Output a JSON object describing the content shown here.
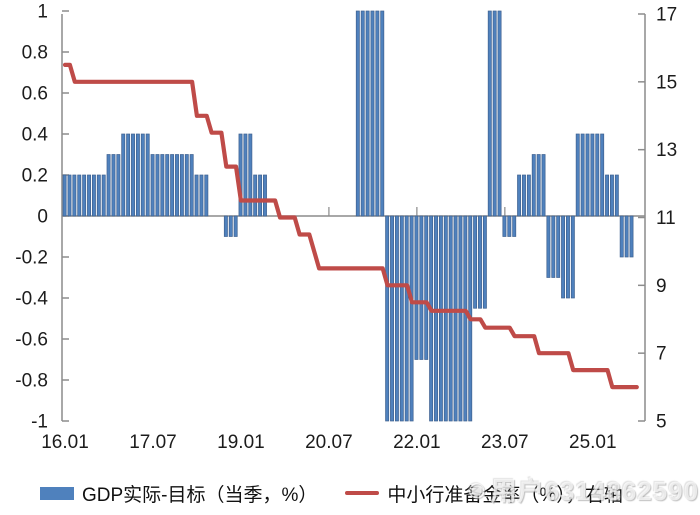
{
  "watermark": {
    "icon": "weibo-eye-icon",
    "text": "用户6314862590"
  },
  "legend": [
    {
      "label": "GDP实际-目标（当季，%）",
      "swatch": "bar",
      "color": "#4f81bd"
    },
    {
      "label": "中小行准备金率（%），右轴",
      "swatch": "line",
      "color": "#bf4b48"
    }
  ],
  "chart_data": {
    "type": "bar",
    "subtype": "monthly bars + step line, dual axis",
    "title": "",
    "xlabel": "",
    "ylabel_left": "",
    "ylabel_right": "",
    "grid": false,
    "background": "#ffffff",
    "left_axis": {
      "min": -1,
      "max": 1,
      "step": 0.2,
      "tick_labels": [
        "1",
        "0.8",
        "0.6",
        "0.4",
        "0.2",
        "0",
        "-0.2",
        "-0.4",
        "-0.6",
        "-0.8",
        "-1"
      ]
    },
    "right_axis": {
      "min": 5,
      "max": 17,
      "step": 2,
      "tick_labels": [
        "17",
        "15",
        "13",
        "11",
        "9",
        "7",
        "5"
      ]
    },
    "x_axis": {
      "tick_labels": [
        "16.01",
        "17.07",
        "19.01",
        "20.07",
        "22.01",
        "23.07",
        "25.01"
      ],
      "tick_month_offsets": [
        0,
        18,
        36,
        54,
        72,
        90,
        108
      ],
      "start_month": "2016-01",
      "end_month": "2025-10"
    },
    "bar_series": {
      "name": "GDP实际-目标（当季，%）",
      "axis": "left",
      "color": "#4f81bd",
      "edge_color": "#3f618f",
      "note_values_clipped_at": 1,
      "quarterly": [
        {
          "q": "2016Q1",
          "v": 0.2
        },
        {
          "q": "2016Q2",
          "v": 0.2
        },
        {
          "q": "2016Q3",
          "v": 0.2
        },
        {
          "q": "2016Q4",
          "v": 0.3
        },
        {
          "q": "2017Q1",
          "v": 0.4
        },
        {
          "q": "2017Q2",
          "v": 0.4
        },
        {
          "q": "2017Q3",
          "v": 0.3
        },
        {
          "q": "2017Q4",
          "v": 0.3
        },
        {
          "q": "2018Q1",
          "v": 0.3
        },
        {
          "q": "2018Q2",
          "v": 0.2
        },
        {
          "q": "2018Q3",
          "v": 0
        },
        {
          "q": "2018Q4",
          "v": -0.1
        },
        {
          "q": "2019Q1",
          "v": 0.4
        },
        {
          "q": "2019Q2",
          "v": 0.2
        },
        {
          "q": "2019Q3",
          "v": 0
        },
        {
          "q": "2019Q4",
          "v": 0
        },
        {
          "q": "2020Q1",
          "v": null
        },
        {
          "q": "2020Q2",
          "v": null
        },
        {
          "q": "2020Q3",
          "v": null
        },
        {
          "q": "2020Q4",
          "v": null
        },
        {
          "q": "2021Q1",
          "v": 1,
          "clipped": true
        },
        {
          "q": "2021Q2",
          "v": 1,
          "clipped": true
        },
        {
          "q": "2021Q3",
          "v": -1,
          "clipped": true
        },
        {
          "q": "2021Q4",
          "v": -1,
          "clipped": true
        },
        {
          "q": "2022Q1",
          "v": -0.7
        },
        {
          "q": "2022Q2",
          "v": -1,
          "clipped": true
        },
        {
          "q": "2022Q3",
          "v": -1,
          "clipped": true
        },
        {
          "q": "2022Q4",
          "v": -1,
          "clipped": true
        },
        {
          "q": "2023Q1",
          "v": -0.45
        },
        {
          "q": "2023Q2",
          "v": 1,
          "clipped": true
        },
        {
          "q": "2023Q3",
          "v": -0.1
        },
        {
          "q": "2023Q4",
          "v": 0.2
        },
        {
          "q": "2024Q1",
          "v": 0.3
        },
        {
          "q": "2024Q2",
          "v": -0.3
        },
        {
          "q": "2024Q3",
          "v": -0.4
        },
        {
          "q": "2024Q4",
          "v": 0.4
        },
        {
          "q": "2025Q1",
          "v": 0.4
        },
        {
          "q": "2025Q2",
          "v": 0.2
        },
        {
          "q": "2025Q3",
          "v": -0.2
        }
      ]
    },
    "line_series": {
      "name": "中小行准备金率（%），右轴",
      "axis": "right",
      "color": "#bf4b48",
      "steps": [
        [
          "2016-01",
          15.5
        ],
        [
          "2016-03",
          15.0
        ],
        [
          "2018-04",
          14.0
        ],
        [
          "2018-07",
          13.5
        ],
        [
          "2018-10",
          12.5
        ],
        [
          "2019-01",
          11.5
        ],
        [
          "2019-09",
          11.0
        ],
        [
          "2020-01",
          10.5
        ],
        [
          "2020-04",
          10.0
        ],
        [
          "2020-05",
          9.5
        ],
        [
          "2021-07",
          9.0
        ],
        [
          "2021-12",
          8.5
        ],
        [
          "2022-04",
          8.25
        ],
        [
          "2022-12",
          8.0
        ],
        [
          "2023-03",
          7.75
        ],
        [
          "2023-09",
          7.5
        ],
        [
          "2024-02",
          7.0
        ],
        [
          "2024-09",
          6.5
        ],
        [
          "2025-05",
          6.0
        ]
      ],
      "end_month": "2025-10"
    }
  }
}
